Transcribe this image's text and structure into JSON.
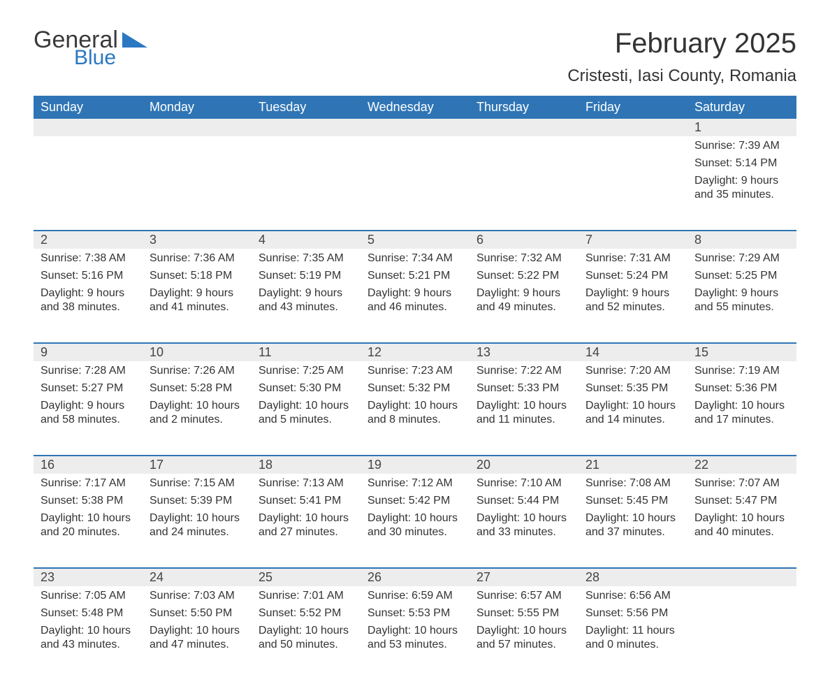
{
  "brand": {
    "word1": "General",
    "word2": "Blue",
    "word1_color": "#3a3a3a",
    "word2_color": "#2b78c2",
    "shape_color": "#2b78c2"
  },
  "title": {
    "month": "February 2025",
    "location": "Cristesti, Iasi County, Romania",
    "title_fontsize": 40,
    "location_fontsize": 24,
    "text_color": "#333333"
  },
  "styling": {
    "header_bg": "#2f75b5",
    "header_text_color": "#ffffff",
    "band_bg": "#ededed",
    "row_divider_color": "#2f75b5",
    "body_bg": "#ffffff",
    "body_text_color": "#333333",
    "cell_fontsize": 16,
    "daynum_fontsize": 18,
    "dow_fontsize": 18,
    "columns": 7
  },
  "days_of_week": [
    "Sunday",
    "Monday",
    "Tuesday",
    "Wednesday",
    "Thursday",
    "Friday",
    "Saturday"
  ],
  "weeks": [
    [
      {
        "day": "",
        "sunrise": "",
        "sunset": "",
        "daylight": ""
      },
      {
        "day": "",
        "sunrise": "",
        "sunset": "",
        "daylight": ""
      },
      {
        "day": "",
        "sunrise": "",
        "sunset": "",
        "daylight": ""
      },
      {
        "day": "",
        "sunrise": "",
        "sunset": "",
        "daylight": ""
      },
      {
        "day": "",
        "sunrise": "",
        "sunset": "",
        "daylight": ""
      },
      {
        "day": "",
        "sunrise": "",
        "sunset": "",
        "daylight": ""
      },
      {
        "day": "1",
        "sunrise": "Sunrise: 7:39 AM",
        "sunset": "Sunset: 5:14 PM",
        "daylight": "Daylight: 9 hours and 35 minutes."
      }
    ],
    [
      {
        "day": "2",
        "sunrise": "Sunrise: 7:38 AM",
        "sunset": "Sunset: 5:16 PM",
        "daylight": "Daylight: 9 hours and 38 minutes."
      },
      {
        "day": "3",
        "sunrise": "Sunrise: 7:36 AM",
        "sunset": "Sunset: 5:18 PM",
        "daylight": "Daylight: 9 hours and 41 minutes."
      },
      {
        "day": "4",
        "sunrise": "Sunrise: 7:35 AM",
        "sunset": "Sunset: 5:19 PM",
        "daylight": "Daylight: 9 hours and 43 minutes."
      },
      {
        "day": "5",
        "sunrise": "Sunrise: 7:34 AM",
        "sunset": "Sunset: 5:21 PM",
        "daylight": "Daylight: 9 hours and 46 minutes."
      },
      {
        "day": "6",
        "sunrise": "Sunrise: 7:32 AM",
        "sunset": "Sunset: 5:22 PM",
        "daylight": "Daylight: 9 hours and 49 minutes."
      },
      {
        "day": "7",
        "sunrise": "Sunrise: 7:31 AM",
        "sunset": "Sunset: 5:24 PM",
        "daylight": "Daylight: 9 hours and 52 minutes."
      },
      {
        "day": "8",
        "sunrise": "Sunrise: 7:29 AM",
        "sunset": "Sunset: 5:25 PM",
        "daylight": "Daylight: 9 hours and 55 minutes."
      }
    ],
    [
      {
        "day": "9",
        "sunrise": "Sunrise: 7:28 AM",
        "sunset": "Sunset: 5:27 PM",
        "daylight": "Daylight: 9 hours and 58 minutes."
      },
      {
        "day": "10",
        "sunrise": "Sunrise: 7:26 AM",
        "sunset": "Sunset: 5:28 PM",
        "daylight": "Daylight: 10 hours and 2 minutes."
      },
      {
        "day": "11",
        "sunrise": "Sunrise: 7:25 AM",
        "sunset": "Sunset: 5:30 PM",
        "daylight": "Daylight: 10 hours and 5 minutes."
      },
      {
        "day": "12",
        "sunrise": "Sunrise: 7:23 AM",
        "sunset": "Sunset: 5:32 PM",
        "daylight": "Daylight: 10 hours and 8 minutes."
      },
      {
        "day": "13",
        "sunrise": "Sunrise: 7:22 AM",
        "sunset": "Sunset: 5:33 PM",
        "daylight": "Daylight: 10 hours and 11 minutes."
      },
      {
        "day": "14",
        "sunrise": "Sunrise: 7:20 AM",
        "sunset": "Sunset: 5:35 PM",
        "daylight": "Daylight: 10 hours and 14 minutes."
      },
      {
        "day": "15",
        "sunrise": "Sunrise: 7:19 AM",
        "sunset": "Sunset: 5:36 PM",
        "daylight": "Daylight: 10 hours and 17 minutes."
      }
    ],
    [
      {
        "day": "16",
        "sunrise": "Sunrise: 7:17 AM",
        "sunset": "Sunset: 5:38 PM",
        "daylight": "Daylight: 10 hours and 20 minutes."
      },
      {
        "day": "17",
        "sunrise": "Sunrise: 7:15 AM",
        "sunset": "Sunset: 5:39 PM",
        "daylight": "Daylight: 10 hours and 24 minutes."
      },
      {
        "day": "18",
        "sunrise": "Sunrise: 7:13 AM",
        "sunset": "Sunset: 5:41 PM",
        "daylight": "Daylight: 10 hours and 27 minutes."
      },
      {
        "day": "19",
        "sunrise": "Sunrise: 7:12 AM",
        "sunset": "Sunset: 5:42 PM",
        "daylight": "Daylight: 10 hours and 30 minutes."
      },
      {
        "day": "20",
        "sunrise": "Sunrise: 7:10 AM",
        "sunset": "Sunset: 5:44 PM",
        "daylight": "Daylight: 10 hours and 33 minutes."
      },
      {
        "day": "21",
        "sunrise": "Sunrise: 7:08 AM",
        "sunset": "Sunset: 5:45 PM",
        "daylight": "Daylight: 10 hours and 37 minutes."
      },
      {
        "day": "22",
        "sunrise": "Sunrise: 7:07 AM",
        "sunset": "Sunset: 5:47 PM",
        "daylight": "Daylight: 10 hours and 40 minutes."
      }
    ],
    [
      {
        "day": "23",
        "sunrise": "Sunrise: 7:05 AM",
        "sunset": "Sunset: 5:48 PM",
        "daylight": "Daylight: 10 hours and 43 minutes."
      },
      {
        "day": "24",
        "sunrise": "Sunrise: 7:03 AM",
        "sunset": "Sunset: 5:50 PM",
        "daylight": "Daylight: 10 hours and 47 minutes."
      },
      {
        "day": "25",
        "sunrise": "Sunrise: 7:01 AM",
        "sunset": "Sunset: 5:52 PM",
        "daylight": "Daylight: 10 hours and 50 minutes."
      },
      {
        "day": "26",
        "sunrise": "Sunrise: 6:59 AM",
        "sunset": "Sunset: 5:53 PM",
        "daylight": "Daylight: 10 hours and 53 minutes."
      },
      {
        "day": "27",
        "sunrise": "Sunrise: 6:57 AM",
        "sunset": "Sunset: 5:55 PM",
        "daylight": "Daylight: 10 hours and 57 minutes."
      },
      {
        "day": "28",
        "sunrise": "Sunrise: 6:56 AM",
        "sunset": "Sunset: 5:56 PM",
        "daylight": "Daylight: 11 hours and 0 minutes."
      },
      {
        "day": "",
        "sunrise": "",
        "sunset": "",
        "daylight": ""
      }
    ]
  ]
}
